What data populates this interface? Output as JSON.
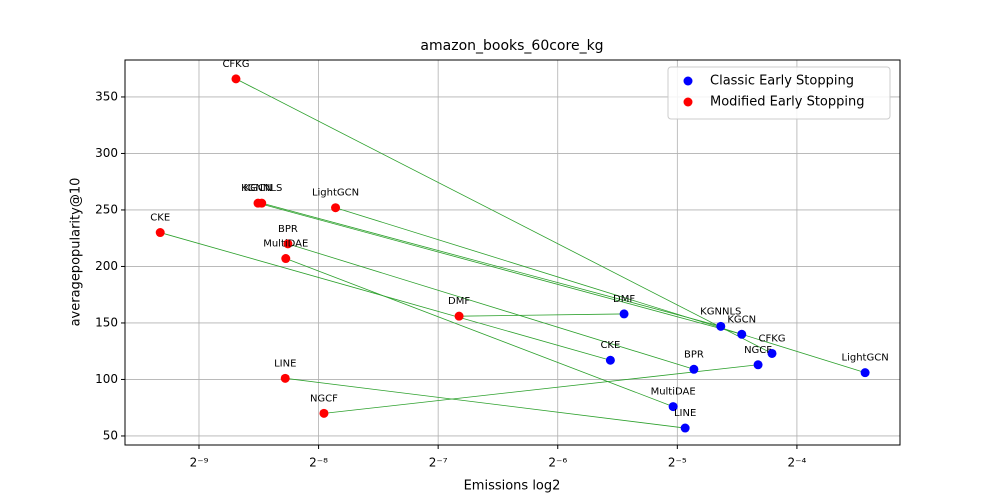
{
  "chart_data": {
    "type": "scatter",
    "title": "amazon_books_60core_kg",
    "x_label": "Emissions log2",
    "y_label": "averagepopularity@10",
    "x_scale": "log2",
    "grid": true,
    "legend": "upper right",
    "connector_color": "#2ca02c",
    "xlim": [
      0.001272,
      0.1136
    ],
    "ylim": [
      42,
      382.7
    ],
    "xticks": [
      {
        "value": 0.001953125,
        "label": "2⁻⁹"
      },
      {
        "value": 0.00390625,
        "label": "2⁻⁸"
      },
      {
        "value": 0.0078125,
        "label": "2⁻⁷"
      },
      {
        "value": 0.015625,
        "label": "2⁻⁶"
      },
      {
        "value": 0.03125,
        "label": "2⁻⁵"
      },
      {
        "value": 0.0625,
        "label": "2⁻⁴"
      }
    ],
    "yticks": [
      50,
      100,
      150,
      200,
      250,
      300,
      350
    ],
    "series": [
      {
        "name": "Classic Early Stopping",
        "color": "#0000ff",
        "labels": [
          "DMF",
          "KGNNLS",
          "KGCN",
          "CFKG",
          "NGCF",
          "LightGCN",
          "CKE",
          "BPR",
          "MultiDAE",
          "LINE"
        ],
        "x": [
          0.02295,
          0.0402,
          0.0454,
          0.0541,
          0.0499,
          0.0928,
          0.0212,
          0.0344,
          0.0305,
          0.0327
        ],
        "values": [
          158,
          147,
          140,
          123,
          113,
          106,
          117,
          109,
          76,
          57
        ]
      },
      {
        "name": "Modified Early Stopping",
        "color": "#ff0000",
        "labels": [
          "CFKG",
          "KGCN",
          "KGNNLS",
          "LightGCN",
          "CKE",
          "BPR",
          "MultiDAE",
          "DMF",
          "LINE",
          "NGCF"
        ],
        "x": [
          0.00242,
          0.00275,
          0.00281,
          0.00431,
          0.00156,
          0.00327,
          0.00323,
          0.00882,
          0.00322,
          0.00403
        ],
        "values": [
          366,
          256,
          256,
          252,
          230,
          220,
          207,
          156,
          101,
          70
        ]
      }
    ]
  }
}
